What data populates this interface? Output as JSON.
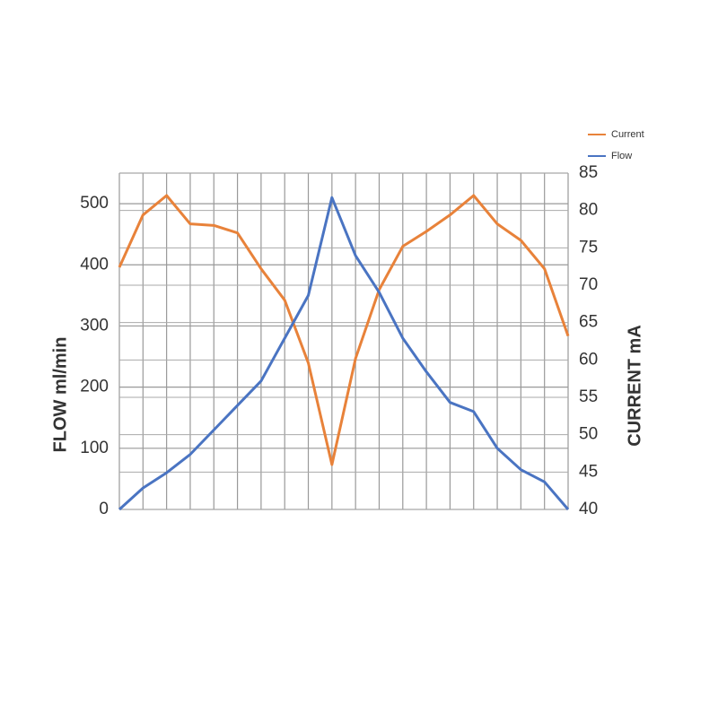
{
  "chart_data": {
    "type": "line",
    "y_label": "FLOW ml/min",
    "y2_label": "CURRENT mA",
    "categories": [
      null,
      null,
      null,
      null,
      null,
      null,
      null,
      null,
      null,
      null,
      null,
      null,
      null,
      null,
      null,
      null,
      null,
      null,
      null,
      null
    ],
    "series": [
      {
        "name": "Current",
        "color": "#e8823a",
        "axis": "y2",
        "values": [
          72.4,
          79.4,
          82,
          78.2,
          78,
          77,
          72.2,
          68,
          59.6,
          46,
          60.2,
          69.4,
          75.2,
          77.2,
          79.4,
          82,
          78.2,
          76,
          72.2,
          63.2
        ]
      },
      {
        "name": "Flow",
        "color": "#4a74c2",
        "values": [
          0,
          35,
          60,
          90,
          130,
          170,
          210,
          280,
          350,
          510,
          415,
          355,
          280,
          225,
          175,
          160,
          100,
          65,
          45,
          0
        ]
      }
    ],
    "ylim": [
      0,
      550
    ],
    "yticks": [
      0,
      100,
      200,
      300,
      400,
      500
    ],
    "y2lim": [
      40,
      85
    ],
    "y2ticks": [
      40,
      45,
      50,
      55,
      60,
      65,
      70,
      75,
      80,
      85
    ],
    "grid": true,
    "legend": "top-right"
  }
}
